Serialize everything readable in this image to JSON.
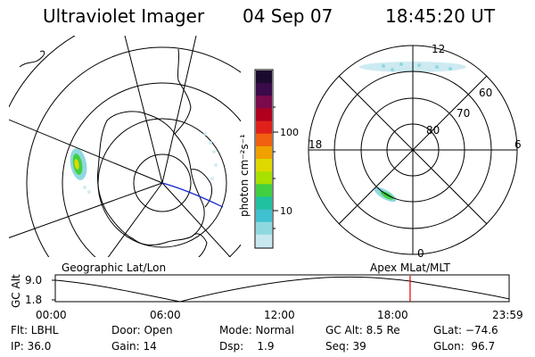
{
  "header": {
    "title": "Ultraviolet Imager",
    "date": "04 Sep 07",
    "time": "18:45:20 UT"
  },
  "colorbar": {
    "unit_label": "photon cm⁻²s⁻¹",
    "ticks": [
      "100",
      "10"
    ],
    "colors": [
      "#1a0a2e",
      "#3b0a4a",
      "#7a0a4a",
      "#b00020",
      "#e0201a",
      "#f06010",
      "#f0a000",
      "#e0d800",
      "#a8e000",
      "#40d040",
      "#20c0a0",
      "#40c0d0",
      "#90d8e0",
      "#c8e8f0"
    ]
  },
  "geo_map": {
    "caption": "Geographic Lat/Lon"
  },
  "mlt_map": {
    "caption": "Apex MLat/MLT",
    "mlt_labels": {
      "top": "12",
      "left": "18",
      "right": "6",
      "bottom": "0"
    },
    "lat_labels": [
      "60",
      "70",
      "80"
    ]
  },
  "timeline": {
    "ylabel": "GC Alt",
    "y_ticks": [
      "9.0",
      "1.8"
    ],
    "x_ticks": [
      "00:00",
      "06:00",
      "12:00",
      "18:00",
      "23:59"
    ],
    "marker_time": "18:45",
    "marker_color": "#e00000"
  },
  "info": {
    "row1": {
      "filter": "Flt: LBHL",
      "door": "Door: Open",
      "mode": "Mode: Normal",
      "gc_alt": "GC Alt: 8.5 Re",
      "glat": "GLat: −74.6"
    },
    "row2": {
      "ip": "IP: 36.0",
      "gain": "Gain: 14",
      "dsp": "Dsp:    1.9",
      "seq": "Seq: 39",
      "glon": "GLon:  96.7"
    }
  }
}
